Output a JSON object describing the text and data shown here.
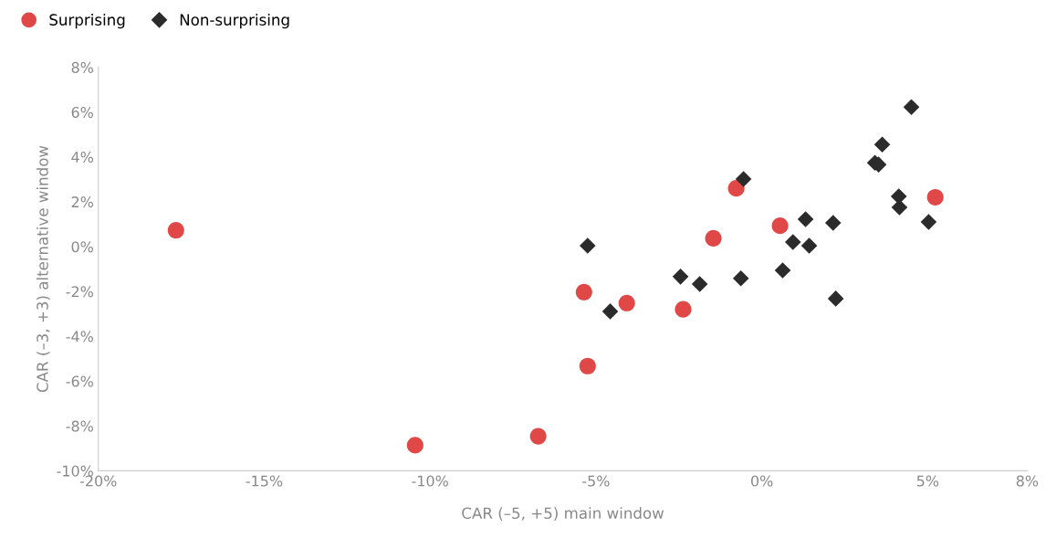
{
  "chart_data": {
    "type": "scatter",
    "xlabel": "CAR (–5, +5) main window",
    "ylabel": "CAR (–3, +3) alternative window",
    "xlim": [
      -20,
      8
    ],
    "ylim": [
      -10,
      8
    ],
    "xticks": [
      {
        "value": -20,
        "label": "-20%"
      },
      {
        "value": -15,
        "label": "-15%"
      },
      {
        "value": -10,
        "label": "-10%"
      },
      {
        "value": -5,
        "label": "-5%"
      },
      {
        "value": 0,
        "label": "0%"
      },
      {
        "value": 5,
        "label": "5%"
      },
      {
        "value": 8,
        "label": "8%"
      }
    ],
    "yticks": [
      {
        "value": -10,
        "label": "-10%"
      },
      {
        "value": -8,
        "label": "-8%"
      },
      {
        "value": -6,
        "label": "-6%"
      },
      {
        "value": -4,
        "label": "-4%"
      },
      {
        "value": -2,
        "label": "-2%"
      },
      {
        "value": 0,
        "label": "0%"
      },
      {
        "value": 2,
        "label": "2%"
      },
      {
        "value": 4,
        "label": "4%"
      },
      {
        "value": 6,
        "label": "6%"
      },
      {
        "value": 8,
        "label": "8%"
      }
    ],
    "grid": false,
    "legend": "top left",
    "series": [
      {
        "name": "Surprising",
        "color": "#e04848",
        "marker": "circle",
        "x": [
          -17.66,
          -10.45,
          -6.74,
          -5.25,
          -5.36,
          -4.07,
          -2.37,
          -1.46,
          -0.77,
          0.55,
          5.23
        ],
        "values": [
          0.73,
          -8.86,
          -8.46,
          -5.33,
          -2.03,
          -2.52,
          -2.8,
          0.37,
          2.6,
          0.93,
          2.2
        ]
      },
      {
        "name": "Non-surprising",
        "color": "#2b2b2b",
        "marker": "diamond",
        "x": [
          -5.25,
          -4.57,
          -2.45,
          -1.87,
          -0.63,
          -0.55,
          0.63,
          0.94,
          1.32,
          1.43,
          2.15,
          2.23,
          3.41,
          3.52,
          3.63,
          4.13,
          4.15,
          4.51,
          5.03
        ],
        "values": [
          0.04,
          -2.89,
          -1.34,
          -1.67,
          -1.42,
          3.01,
          -1.06,
          0.2,
          1.22,
          0.04,
          1.06,
          -2.32,
          3.74,
          3.66,
          4.55,
          2.24,
          1.75,
          6.22,
          1.1
        ]
      }
    ]
  }
}
